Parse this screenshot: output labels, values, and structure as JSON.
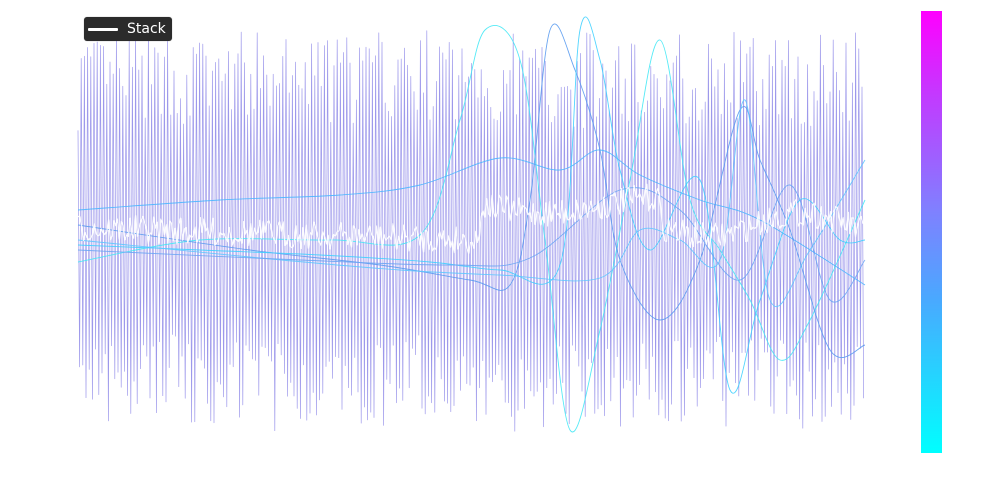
{
  "chart_data": {
    "type": "line",
    "title": "",
    "xlabel": "",
    "ylabel": "",
    "grid": false,
    "axes_visible": false,
    "legend": {
      "placement": "top-left",
      "entries": [
        "Stack"
      ]
    },
    "colorbar": {
      "placement": "right",
      "colormap": "cool",
      "colors": [
        "#00ffff",
        "#ff00ff"
      ]
    },
    "series": [
      {
        "name": "Stack",
        "color": "#ffffff",
        "kind": "noisy-band"
      },
      {
        "color": "#8c86e8",
        "kind": "dense-oscillation"
      },
      {
        "color": "#44e8f5",
        "kind": "smooth-curve"
      },
      {
        "color": "#4ab6ff",
        "kind": "smooth-curve"
      },
      {
        "color": "#5a9bf0",
        "kind": "smooth-curve"
      },
      {
        "color": "#3fd0ff",
        "kind": "smooth-curve"
      },
      {
        "color": "#5ec8ff",
        "kind": "smooth-curve"
      },
      {
        "color": "#6aa6f4",
        "kind": "smooth-curve"
      }
    ]
  }
}
